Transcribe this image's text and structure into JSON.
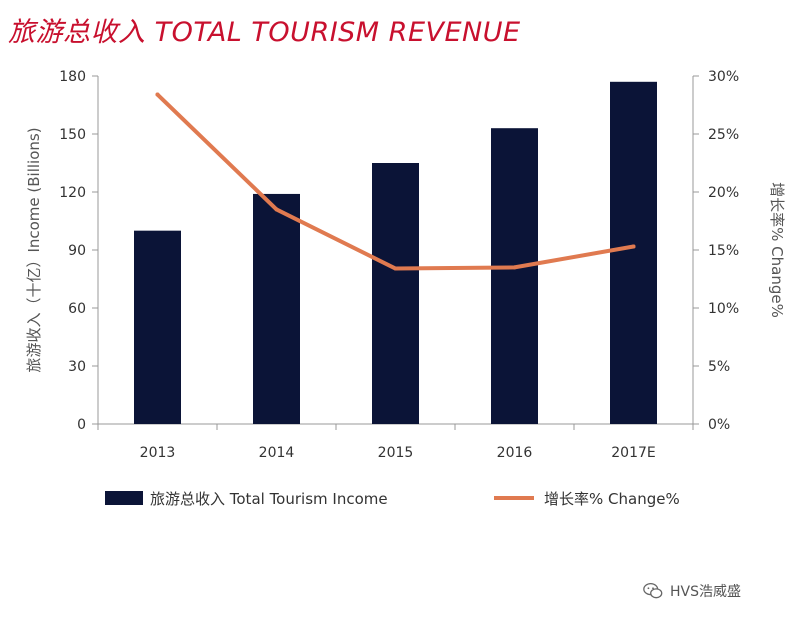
{
  "title": "旅游总收入 TOTAL TOURISM REVENUE",
  "watermark": "HVS浩威盛",
  "colors": {
    "title": "#c8102e",
    "bar": "#0b1437",
    "line": "#e07a50",
    "axis": "#999999"
  },
  "chart_data": {
    "type": "bar",
    "categories": [
      "2013",
      "2014",
      "2015",
      "2016",
      "2017E"
    ],
    "series": [
      {
        "name": "旅游总收入 Total Tourism Income",
        "type": "bar",
        "axis": "left",
        "values": [
          100,
          119,
          135,
          153,
          177
        ]
      },
      {
        "name": "增长率% Change%",
        "type": "line",
        "axis": "right",
        "values": [
          28.4,
          18.5,
          13.4,
          13.5,
          15.3
        ]
      }
    ],
    "ylabel": "旅游收入（十亿）Income (Billions)",
    "y2label": "增长率% Change%",
    "ylim": [
      0,
      180
    ],
    "y2lim": [
      0,
      30
    ],
    "yticks": [
      "0",
      "30",
      "60",
      "90",
      "120",
      "150",
      "180"
    ],
    "y2ticks": [
      "0%",
      "5%",
      "10%",
      "15%",
      "20%",
      "25%",
      "30%"
    ],
    "grid": false,
    "legend_position": "bottom"
  }
}
